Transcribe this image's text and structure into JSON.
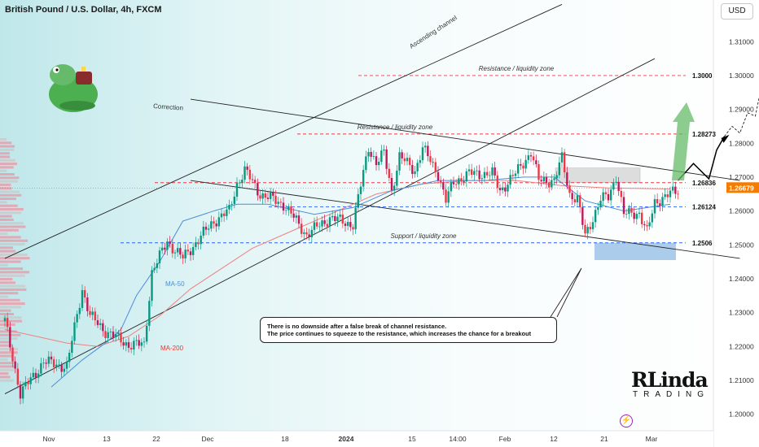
{
  "header": {
    "title": "British Pound / U.S. Dollar, 4h, FXCM"
  },
  "currency_button": {
    "label": "USD"
  },
  "icons": {
    "mascot": "frog-drinking-tea-icon",
    "bolt": "lightning-icon",
    "logo": "rlinda-trading-logo"
  },
  "note": {
    "line1": "There is no downside after a false break of channel resistance.",
    "line2": "The price continues to squeeze to the resistance, which increases the chance for a breakout"
  },
  "logo": {
    "main": "RLinda",
    "sub": "TRADING"
  },
  "colors": {
    "candle_up": "#089981",
    "candle_down": "#f23645",
    "candle_mixed": "#c2185b",
    "ma50": "#4a8fd8",
    "ma200": "#f08080",
    "level_line": "#2962ff",
    "resistance_dash": "#f23645",
    "price_tag": "#f57c00",
    "forecast_arrow": "#000000",
    "bull_arrow": "#66bb6a"
  },
  "chart_data": {
    "type": "candlestick",
    "symbol": "GBPUSD",
    "timeframe": "4h",
    "y_axis": {
      "ticks": [
        "1.31000",
        "1.30000",
        "1.29000",
        "1.28000",
        "1.27000",
        "1.26000",
        "1.25000",
        "1.24000",
        "1.23000",
        "1.22000",
        "1.21000",
        "1.20000"
      ],
      "range": [
        1.1975,
        1.3175
      ]
    },
    "x_axis": {
      "labels": [
        "Nov",
        "13",
        "22",
        "Dec",
        "18",
        "2024",
        "15",
        "14:00",
        "Feb",
        "12",
        "21",
        "Mar"
      ],
      "bold_labels": [
        "2024"
      ]
    },
    "levels": [
      {
        "value": 1.3,
        "label": "1.3000",
        "style": "dashed-red",
        "annotation": "Resistance / liquidity zone"
      },
      {
        "value": 1.28273,
        "label": "1.28273",
        "style": "dashed-red",
        "annotation": "Resistance / liquidity zone"
      },
      {
        "value": 1.26836,
        "label": "1.26836",
        "style": "dashed-red",
        "annotation": ""
      },
      {
        "value": 1.26124,
        "label": "1.26124",
        "style": "dashed-blue",
        "annotation": ""
      },
      {
        "value": 1.2506,
        "label": "1.2506",
        "style": "dashed-blue",
        "annotation": "Support / liquidity zone"
      }
    ],
    "current_price": {
      "value": 1.26679,
      "label": "1.26679"
    },
    "annotations": {
      "ascending_channel": "Ascending channel",
      "correction": "Correction",
      "ma50": "MA-50",
      "ma200": "MA-200"
    },
    "price_path": [
      [
        0,
        1.2275
      ],
      [
        2,
        1.206
      ],
      [
        5,
        1.2155
      ],
      [
        8,
        1.214
      ],
      [
        10,
        1.237
      ],
      [
        11,
        1.229
      ],
      [
        13,
        1.2245
      ],
      [
        16,
        1.2205
      ],
      [
        18,
        1.2205
      ],
      [
        19,
        1.242
      ],
      [
        21,
        1.251
      ],
      [
        23,
        1.246
      ],
      [
        27,
        1.257
      ],
      [
        29,
        1.26
      ],
      [
        30,
        1.268
      ],
      [
        31,
        1.272
      ],
      [
        33,
        1.265
      ],
      [
        36,
        1.262
      ],
      [
        39,
        1.253
      ],
      [
        42,
        1.258
      ],
      [
        45,
        1.256
      ],
      [
        47,
        1.279
      ],
      [
        48,
        1.274
      ],
      [
        49,
        1.277
      ],
      [
        50,
        1.266
      ],
      [
        51,
        1.276
      ],
      [
        53,
        1.272
      ],
      [
        54,
        1.2785
      ],
      [
        56,
        1.271
      ],
      [
        57,
        1.263
      ],
      [
        58,
        1.2685
      ],
      [
        60,
        1.271
      ],
      [
        63,
        1.271
      ],
      [
        64,
        1.266
      ],
      [
        66,
        1.271
      ],
      [
        68,
        1.2775
      ],
      [
        69,
        1.269
      ],
      [
        71,
        1.269
      ],
      [
        72,
        1.2755
      ],
      [
        73,
        1.265
      ],
      [
        74,
        1.2635
      ],
      [
        75,
        1.2525
      ],
      [
        77,
        1.2635
      ],
      [
        78,
        1.264
      ],
      [
        79,
        1.2705
      ],
      [
        80,
        1.259
      ],
      [
        82,
        1.2595
      ],
      [
        83,
        1.2535
      ],
      [
        84,
        1.2625
      ],
      [
        85,
        1.264
      ],
      [
        87,
        1.266
      ]
    ],
    "ma50_path": [
      [
        6,
        1.208
      ],
      [
        10,
        1.216
      ],
      [
        13,
        1.221
      ],
      [
        15,
        1.225
      ],
      [
        17,
        1.235
      ],
      [
        20,
        1.245
      ],
      [
        23,
        1.257
      ],
      [
        27,
        1.26
      ],
      [
        30,
        1.262
      ],
      [
        34,
        1.262
      ],
      [
        40,
        1.259
      ],
      [
        45,
        1.261
      ],
      [
        50,
        1.266
      ],
      [
        56,
        1.269
      ],
      [
        62,
        1.269
      ],
      [
        67,
        1.27
      ],
      [
        71,
        1.27
      ],
      [
        75,
        1.263
      ],
      [
        80,
        1.26
      ],
      [
        86,
        1.262
      ]
    ],
    "ma200_path": [
      [
        0,
        1.225
      ],
      [
        4,
        1.223
      ],
      [
        8,
        1.221
      ],
      [
        12,
        1.22
      ],
      [
        16,
        1.223
      ],
      [
        20,
        1.229
      ],
      [
        24,
        1.237
      ],
      [
        28,
        1.243
      ],
      [
        32,
        1.249
      ],
      [
        36,
        1.253
      ],
      [
        40,
        1.257
      ],
      [
        44,
        1.261
      ],
      [
        48,
        1.265
      ],
      [
        54,
        1.268
      ],
      [
        60,
        1.269
      ],
      [
        66,
        1.269
      ],
      [
        72,
        1.2675
      ],
      [
        78,
        1.2668
      ],
      [
        86,
        1.2665
      ]
    ],
    "forecast_path": [
      [
        87,
        1.269
      ],
      [
        89,
        1.274
      ],
      [
        91,
        1.2695
      ],
      [
        92,
        1.278
      ],
      [
        93,
        1.282
      ]
    ],
    "forecast_dashed_path": [
      [
        93,
        1.282
      ],
      [
        94,
        1.285
      ],
      [
        95,
        1.283
      ],
      [
        96,
        1.289
      ],
      [
        97,
        1.288
      ],
      [
        98,
        1.299
      ]
    ],
    "channel_lines": {
      "ascending_lower": [
        [
          0,
          1.206
        ],
        [
          84,
          1.305
        ]
      ],
      "ascending_upper": [
        [
          0,
          1.246
        ],
        [
          72,
          1.321
        ]
      ],
      "correction_upper": [
        [
          24,
          1.293
        ],
        [
          95,
          1.269
        ]
      ],
      "correction_lower": [
        [
          24,
          1.269
        ],
        [
          95,
          1.246
        ]
      ]
    }
  }
}
